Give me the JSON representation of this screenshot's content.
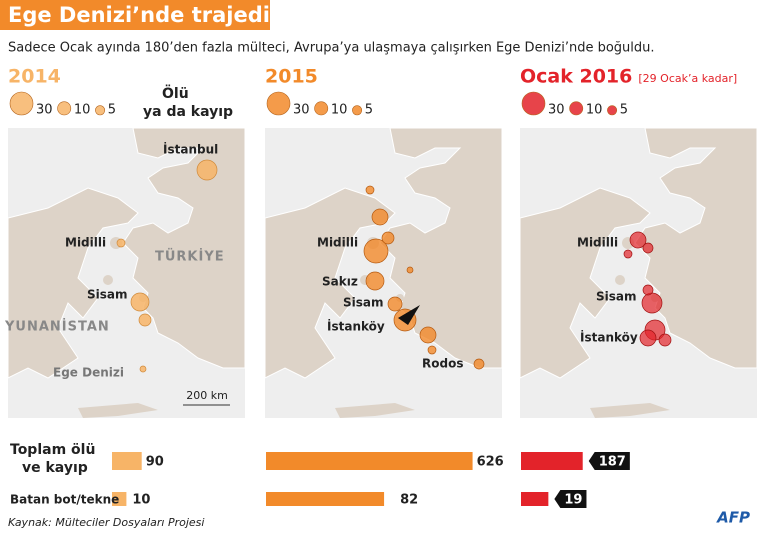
{
  "header": {
    "title": "Ege Denizi’nde trajedi",
    "subtitle": "Sadece Ocak ayında 180’den fazla mülteci, Avrupa’ya ulaşmaya çalışırken Ege Denizi’nde boğuldu."
  },
  "legend_label": [
    "Ölü",
    "ya da kayıp"
  ],
  "panels": [
    {
      "year": "2014",
      "color": "#f7b467",
      "legend": [
        30,
        10,
        5
      ],
      "places": [
        "İstanbul",
        "Midilli",
        "TÜRKİYE",
        "Sisam",
        "YUNANİSTAN",
        "Ege Denizi"
      ],
      "scale": "200 km",
      "total": 90,
      "boats": 10
    },
    {
      "year": "2015",
      "color": "#f28a2a",
      "legend": [
        30,
        10,
        5
      ],
      "places": [
        "Midilli",
        "Sakız",
        "Sisam",
        "İstanköy",
        "Rodos"
      ],
      "total": 626,
      "boats": 82
    },
    {
      "year": "Ocak 2016",
      "note": "[29 Ocak’a kadar]",
      "color": "#e3232a",
      "legend": [
        30,
        10,
        5
      ],
      "places": [
        "Midilli",
        "Sisam",
        "İstanköy"
      ],
      "total": 187,
      "boats": 19
    }
  ],
  "rows": {
    "total": [
      "Toplam ölü",
      "ve kayıp"
    ],
    "boats": "Batan bot/tekne"
  },
  "source": "Kaynak: Mülteciler Dosyaları Projesi",
  "credit": "AFP"
}
